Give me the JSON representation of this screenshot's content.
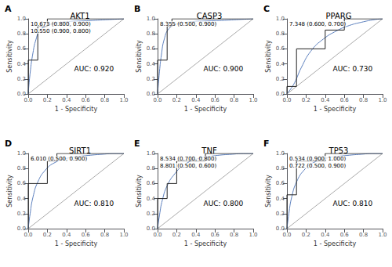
{
  "chart_data": [
    {
      "type": "line",
      "title": "AKT1",
      "annotations": [
        "A",
        "AUC: 0.920",
        "10.673 (0.800, 0.900)",
        "10.550 (0.900, 0.800)"
      ],
      "xlabel": "1 - Specificity",
      "ylabel": "Sensitivity",
      "xlim": [
        0,
        1
      ],
      "ylim": [
        0,
        1
      ],
      "xticks": [
        {
          "value": 0,
          "label": "0.0"
        },
        0.2,
        0.4,
        0.6,
        0.8,
        {
          "value": 1,
          "label": "1.0"
        }
      ],
      "yticks": [
        {
          "value": 0,
          "label": "0.0"
        },
        0.2,
        0.4,
        0.6,
        0.8,
        {
          "value": 1,
          "label": "1.0"
        }
      ],
      "grid": false,
      "series": [
        {
          "type": "line",
          "line_style": "solid",
          "color": "#aaaaaa",
          "x": [
            0,
            1
          ],
          "values": [
            0,
            1
          ]
        },
        {
          "type": "step",
          "line_style": "solid",
          "color": "#222222",
          "x": [
            0.0,
            0.0,
            0.0,
            0.1,
            0.1,
            0.2,
            0.2,
            1.0
          ],
          "values": [
            0.0,
            0.0,
            0.45,
            0.45,
            0.9,
            0.9,
            1.0,
            1.0
          ]
        },
        {
          "type": "spline",
          "line_style": "solid",
          "color": "#5b7fbd",
          "x": [
            0.0,
            0.02,
            0.05,
            0.08,
            0.12,
            0.18,
            0.28,
            0.4,
            0.55,
            0.7,
            0.85,
            1.0
          ],
          "values": [
            0.0,
            0.28,
            0.55,
            0.72,
            0.84,
            0.9,
            0.94,
            0.96,
            0.97,
            0.98,
            0.99,
            1.0
          ]
        }
      ]
    },
    {
      "type": "line",
      "title": "CASP3",
      "annotations": [
        "B",
        "AUC: 0.900",
        "8.355 (0.500, 0.900)"
      ],
      "xlabel": "1 - Specificity",
      "ylabel": "Sensitivity",
      "xlim": [
        0,
        1
      ],
      "ylim": [
        0,
        1
      ],
      "xticks": [
        {
          "value": 0,
          "label": "0.0"
        },
        0.2,
        0.4,
        0.6,
        0.8,
        {
          "value": 1,
          "label": "1.0"
        }
      ],
      "yticks": [
        {
          "value": 0,
          "label": "0.0"
        },
        0.2,
        0.4,
        0.6,
        0.8,
        {
          "value": 1,
          "label": "1.0"
        }
      ],
      "grid": false,
      "series": [
        {
          "type": "line",
          "line_style": "solid",
          "color": "#aaaaaa",
          "x": [
            0,
            1
          ],
          "values": [
            0,
            1
          ]
        },
        {
          "type": "step",
          "line_style": "solid",
          "color": "#222222",
          "x": [
            0.0,
            0.0,
            0.1,
            0.1,
            0.15,
            0.15,
            1.0
          ],
          "values": [
            0.0,
            0.45,
            0.45,
            0.9,
            0.9,
            1.0,
            1.0
          ]
        },
        {
          "type": "spline",
          "line_style": "solid",
          "color": "#5b7fbd",
          "x": [
            0.0,
            0.02,
            0.04,
            0.07,
            0.12,
            0.2,
            0.35,
            0.5,
            0.7,
            0.85,
            1.0
          ],
          "values": [
            0.0,
            0.3,
            0.52,
            0.73,
            0.87,
            0.93,
            0.96,
            0.97,
            0.98,
            0.99,
            1.0
          ]
        }
      ]
    },
    {
      "type": "line",
      "title": "PPARG",
      "annotations": [
        "C",
        "AUC: 0.730",
        "7.348 (0.600, 0.700)"
      ],
      "xlabel": "1 - Specificity",
      "ylabel": "Sensitivity",
      "xlim": [
        0,
        1
      ],
      "ylim": [
        0,
        1
      ],
      "xticks": [
        {
          "value": 0,
          "label": "0.0"
        },
        0.2,
        0.4,
        0.6,
        0.8,
        {
          "value": 1,
          "label": "1.0"
        }
      ],
      "yticks": [
        {
          "value": 0,
          "label": "0.0"
        },
        0.2,
        0.4,
        0.6,
        0.8,
        {
          "value": 1,
          "label": "1.0"
        }
      ],
      "grid": false,
      "series": [
        {
          "type": "line",
          "line_style": "solid",
          "color": "#aaaaaa",
          "x": [
            0,
            1
          ],
          "values": [
            0,
            1
          ]
        },
        {
          "type": "step",
          "line_style": "solid",
          "color": "#222222",
          "x": [
            0.0,
            0.0,
            0.1,
            0.1,
            0.4,
            0.4,
            0.6,
            0.6,
            1.0
          ],
          "values": [
            0.0,
            0.1,
            0.1,
            0.6,
            0.6,
            0.85,
            0.85,
            1.0,
            1.0
          ]
        },
        {
          "type": "spline",
          "line_style": "solid",
          "color": "#5b7fbd",
          "x": [
            0.0,
            0.03,
            0.08,
            0.15,
            0.25,
            0.38,
            0.52,
            0.65,
            0.8,
            0.92,
            1.0
          ],
          "values": [
            0.0,
            0.05,
            0.15,
            0.35,
            0.57,
            0.73,
            0.84,
            0.91,
            0.96,
            0.99,
            1.0
          ]
        }
      ]
    },
    {
      "type": "line",
      "title": "SIRT1",
      "annotations": [
        "D",
        "AUC: 0.810",
        "6.010 (0.500, 0.900)"
      ],
      "xlabel": "1 - Specificity",
      "ylabel": "Sensitivity",
      "xlim": [
        0,
        1
      ],
      "ylim": [
        0,
        1
      ],
      "xticks": [
        {
          "value": 0,
          "label": "0.0"
        },
        0.2,
        0.4,
        0.6,
        0.8,
        {
          "value": 1,
          "label": "1.0"
        }
      ],
      "yticks": [
        {
          "value": 0,
          "label": "0.0"
        },
        0.2,
        0.4,
        0.6,
        0.8,
        {
          "value": 1,
          "label": "1.0"
        }
      ],
      "grid": false,
      "series": [
        {
          "type": "line",
          "line_style": "solid",
          "color": "#aaaaaa",
          "x": [
            0,
            1
          ],
          "values": [
            0,
            1
          ]
        },
        {
          "type": "step",
          "line_style": "solid",
          "color": "#222222",
          "x": [
            0.0,
            0.0,
            0.2,
            0.2,
            0.3,
            0.3,
            0.8,
            0.8,
            1.0
          ],
          "values": [
            0.0,
            0.6,
            0.6,
            0.9,
            0.9,
            1.0,
            1.0,
            1.0,
            1.0
          ]
        },
        {
          "type": "spline",
          "line_style": "solid",
          "color": "#5b7fbd",
          "x": [
            0.0,
            0.02,
            0.05,
            0.1,
            0.18,
            0.28,
            0.42,
            0.6,
            0.78,
            0.92,
            1.0
          ],
          "values": [
            0.0,
            0.2,
            0.42,
            0.62,
            0.78,
            0.88,
            0.94,
            0.97,
            0.99,
            1.0,
            1.0
          ]
        }
      ]
    },
    {
      "type": "line",
      "title": "TNF",
      "annotations": [
        "E",
        "AUC: 0.800",
        "8.534 (0.700, 0.800)",
        "8.801 (0.500, 0.600)"
      ],
      "xlabel": "1 - Specificity",
      "ylabel": "Sensitivity",
      "xlim": [
        0,
        1
      ],
      "ylim": [
        0,
        1
      ],
      "xticks": [
        {
          "value": 0,
          "label": "0.0"
        },
        0.2,
        0.4,
        0.6,
        0.8,
        {
          "value": 1,
          "label": "1.0"
        }
      ],
      "yticks": [
        {
          "value": 0,
          "label": "0.0"
        },
        0.2,
        0.4,
        0.6,
        0.8,
        {
          "value": 1,
          "label": "1.0"
        }
      ],
      "grid": false,
      "series": [
        {
          "type": "line",
          "line_style": "solid",
          "color": "#aaaaaa",
          "x": [
            0,
            1
          ],
          "values": [
            0,
            1
          ]
        },
        {
          "type": "step",
          "line_style": "solid",
          "color": "#222222",
          "x": [
            0.0,
            0.0,
            0.1,
            0.1,
            0.2,
            0.2,
            0.5,
            0.5,
            1.0
          ],
          "values": [
            0.0,
            0.4,
            0.4,
            0.6,
            0.6,
            0.9,
            0.9,
            1.0,
            1.0
          ]
        },
        {
          "type": "spline",
          "line_style": "solid",
          "color": "#5b7fbd",
          "x": [
            0.0,
            0.02,
            0.05,
            0.1,
            0.18,
            0.28,
            0.42,
            0.6,
            0.78,
            0.92,
            1.0
          ],
          "values": [
            0.0,
            0.18,
            0.38,
            0.57,
            0.73,
            0.85,
            0.93,
            0.97,
            0.99,
            1.0,
            1.0
          ]
        }
      ]
    },
    {
      "type": "line",
      "title": "TP53",
      "annotations": [
        "F",
        "AUC: 0.810",
        "0.534 (0.900, 1.000)",
        "0.722 (0.500, 0.900)"
      ],
      "xlabel": "1 - Specificity",
      "ylabel": "Sensitivity",
      "xlim": [
        0,
        1
      ],
      "ylim": [
        0,
        1
      ],
      "xticks": [
        {
          "value": 0,
          "label": "0.0"
        },
        0.2,
        0.4,
        0.6,
        0.8,
        {
          "value": 1,
          "label": "1.0"
        }
      ],
      "yticks": [
        {
          "value": 0,
          "label": "0.0"
        },
        0.2,
        0.4,
        0.6,
        0.8,
        {
          "value": 1,
          "label": "1.0"
        }
      ],
      "grid": false,
      "series": [
        {
          "type": "line",
          "line_style": "solid",
          "color": "#aaaaaa",
          "x": [
            0,
            1
          ],
          "values": [
            0,
            1
          ]
        },
        {
          "type": "step",
          "line_style": "solid",
          "color": "#222222",
          "x": [
            0.0,
            0.0,
            0.1,
            0.1,
            0.4,
            0.4,
            0.5,
            0.5,
            1.0
          ],
          "values": [
            0.0,
            0.45,
            0.45,
            0.9,
            0.9,
            1.0,
            1.0,
            1.0,
            1.0
          ]
        },
        {
          "type": "spline",
          "line_style": "solid",
          "color": "#5b7fbd",
          "x": [
            0.0,
            0.02,
            0.05,
            0.1,
            0.18,
            0.28,
            0.42,
            0.6,
            0.78,
            0.92,
            1.0
          ],
          "values": [
            0.0,
            0.2,
            0.42,
            0.62,
            0.78,
            0.88,
            0.94,
            0.97,
            0.99,
            1.0,
            1.0
          ]
        }
      ]
    }
  ]
}
